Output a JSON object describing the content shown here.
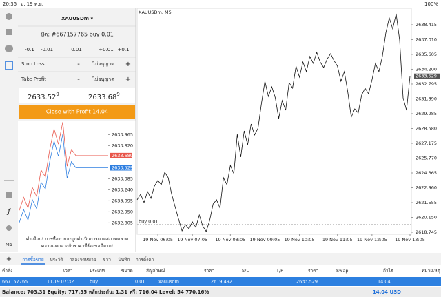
{
  "status_bar": {
    "time": "20:35",
    "date": "อ. 19 พ.ย.",
    "battery": "100%"
  },
  "toolbar": {
    "timeframe": "M5"
  },
  "order_panel": {
    "symbol": "XAUUSDm ▾",
    "close_title": "ปิด: #667157765 buy 0.01",
    "steps": [
      "-0.1",
      "-0.01",
      "0.01",
      "+0.01",
      "+0.1"
    ],
    "stop_loss": {
      "label": "Stop Loss",
      "minus": "-",
      "value": "ไม่อนุญาต",
      "plus": "+"
    },
    "take_profit": {
      "label": "Take Profit",
      "minus": "-",
      "value": "ไม่อนุญาต",
      "plus": "+"
    },
    "bid": {
      "main": "2633.52",
      "last": "9"
    },
    "ask": {
      "main": "2633.68",
      "last": "9"
    },
    "button": "Close with Profit 14.04"
  },
  "warning": [
    "คำเตือน! การซื้อขายจะถูกดำเนินการตามสภาพตลาด",
    "ความแตกต่างกับราคาที่ร้องขอมีมาก!"
  ],
  "chart_data": [
    {
      "type": "line",
      "title": "XAUUSDm, M5",
      "color": "#111111",
      "values": [
        2621.82,
        2622.34,
        2621.56,
        2622.6,
        2621.95,
        2623.12,
        2623.65,
        2623.25,
        2624.43,
        2623.91,
        2622.34,
        2621.16,
        2619.99,
        2618.88,
        2619.46,
        2619.07,
        2619.73,
        2619.2,
        2620.38,
        2619.33,
        2618.81,
        2619.86,
        2621.42,
        2621.82,
        2621.03,
        2623.91,
        2623.25,
        2625.08,
        2624.3,
        2628.02,
        2625.87,
        2628.35,
        2627.04,
        2629.0,
        2627.96,
        2628.61,
        2630.97,
        2633.06,
        2631.62,
        2632.53,
        2631.49,
        2629.53,
        2631.23,
        2630.31,
        2632.93,
        2632.4,
        2634.49,
        2633.45,
        2634.89,
        2633.97,
        2635.41,
        2634.76,
        2635.8,
        2634.89,
        2634.36,
        2635.15,
        2635.67,
        2635.02,
        2634.49,
        2633.06,
        2633.97,
        2632.01,
        2629.66,
        2630.44,
        2630.05,
        2631.75,
        2632.4,
        2631.88,
        2633.19,
        2634.76,
        2633.97,
        2635.41,
        2637.63,
        2639.07,
        2638.02,
        2639.46,
        2636.98,
        2631.49,
        2630.31,
        2633.53
      ],
      "ylim": [
        2618.55,
        2639.98
      ],
      "yticks": [
        2638.415,
        {
          "value": 2637.01,
          "label": "2637.010"
        },
        2635.605,
        {
          "value": 2634.2,
          "label": "2634.200"
        },
        2632.795,
        {
          "value": 2631.39,
          "label": "2631.390"
        },
        2629.985,
        {
          "value": 2628.58,
          "label": "2628.580"
        },
        2627.175,
        {
          "value": 2625.77,
          "label": "2625.770"
        },
        2624.365,
        {
          "value": 2622.96,
          "label": "2622.960"
        },
        2621.555,
        {
          "value": 2620.15,
          "label": "2620.150"
        },
        2618.745
      ],
      "xticks": [
        {
          "value": 6,
          "label": "19 Nov 06:05"
        },
        {
          "value": 16,
          "label": "19 Nov 07:05"
        },
        {
          "value": 27,
          "label": "19 Nov 08:05"
        },
        {
          "value": 37,
          "label": "19 Nov 09:05"
        },
        {
          "value": 47,
          "label": "19 Nov 10:05"
        },
        {
          "value": 58,
          "label": "19 Nov 11:05"
        },
        {
          "value": 68,
          "label": "19 Nov 12:05"
        },
        {
          "value": 79,
          "label": "19 Nov 13:05"
        }
      ],
      "current_price": 2633.529,
      "order_line": {
        "label": "buy 0.01",
        "value": 2619.492
      }
    },
    {
      "type": "line",
      "series": [
        {
          "color": "#e8554a",
          "values": [
            2632.97,
            2633.14,
            2633.0,
            2633.27,
            2633.15,
            2633.5,
            2633.41,
            2633.77,
            2634.04,
            2633.84,
            2634.13,
            2633.55,
            2633.77,
            2633.69
          ],
          "last": 2633.689
        },
        {
          "color": "#2f7fe0",
          "values": [
            2632.81,
            2632.98,
            2632.84,
            2633.11,
            2632.99,
            2633.34,
            2633.25,
            2633.61,
            2633.88,
            2633.68,
            2633.97,
            2633.39,
            2633.61,
            2633.53
          ],
          "last": 2633.529
        }
      ],
      "ylim": [
        2632.7,
        2634.15
      ],
      "yticks": [
        2633.965,
        {
          "value": 2633.82,
          "label": "2633.820"
        },
        2633.385,
        {
          "value": 2633.24,
          "label": "2633.240"
        },
        2633.095,
        {
          "value": 2632.95,
          "label": "2632.950"
        },
        2632.805
      ]
    }
  ],
  "tabs": {
    "add": "+",
    "items": [
      "การซื้อขาย",
      "ประวัติ",
      "กล่องจดหมาย",
      "ข่าว",
      "บันทึก",
      "การตั้งค่า"
    ]
  },
  "table": {
    "headers": [
      "คำสั่ง",
      "เวลา",
      "ประเภท",
      "ขนาด",
      "สัญลักษณ์",
      "ราคา",
      "S/L",
      "T/P",
      "ราคา",
      "Swap",
      "กำไร",
      "หมายเหตุ"
    ],
    "rows": [
      {
        "order": "667157765",
        "time": "11.19 07:32",
        "type": "buy",
        "volume": "0.01",
        "symbol": "xauusdm",
        "price": "2619.492",
        "current_price": "2633.529",
        "profit": "14.04"
      }
    ]
  },
  "footer": {
    "summary": "Balance: 703.31 Equity: 717.35 หลักประกัน: 1.31 ฟรี: 716.04 Level: 54 770.16%",
    "profit": "14.04 USD"
  }
}
